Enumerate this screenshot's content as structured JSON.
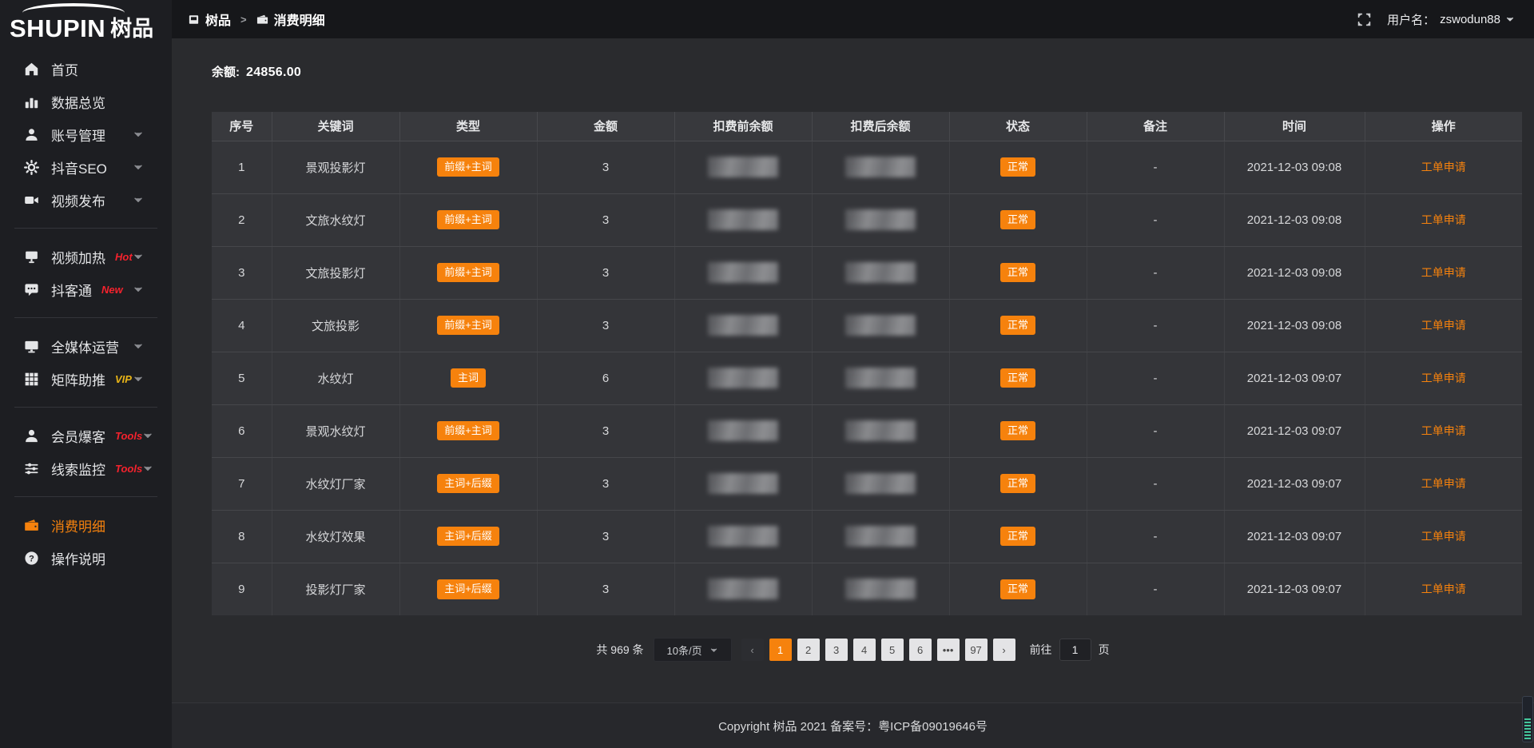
{
  "app": {
    "logo_en": "SHUPIN",
    "logo_cn": "树品"
  },
  "topbar": {
    "breadcrumb": [
      {
        "label": "树品"
      },
      {
        "label": "消费明细"
      }
    ],
    "separator": ">",
    "username_label": "用户名：",
    "username": "zswodun88"
  },
  "balance": {
    "label": "余额:",
    "value": "24856.00"
  },
  "sidebar": {
    "items": [
      {
        "id": "home",
        "label": "首页",
        "icon": "home-icon"
      },
      {
        "id": "data-overview",
        "label": "数据总览",
        "icon": "bar-chart-icon"
      },
      {
        "id": "account-management",
        "label": "账号管理",
        "icon": "user-icon",
        "chevron": true
      },
      {
        "id": "douyin-seo",
        "label": "抖音SEO",
        "icon": "gear-icon",
        "chevron": true
      },
      {
        "id": "video-publish",
        "label": "视频发布",
        "icon": "video-camera-icon",
        "chevron": true
      },
      {
        "type": "divider"
      },
      {
        "id": "video-heating",
        "label": "视频加热",
        "icon": "screen-icon",
        "tag": "Hot",
        "tag_color": "#f5222d",
        "chevron": true
      },
      {
        "id": "douketong",
        "label": "抖客通",
        "icon": "chat-icon",
        "tag": "New",
        "tag_color": "#f5222d",
        "chevron": true
      },
      {
        "type": "divider"
      },
      {
        "id": "all-media-operation",
        "label": "全媒体运营",
        "icon": "monitor-icon",
        "chevron": true
      },
      {
        "id": "matrix-boost",
        "label": "矩阵助推",
        "icon": "grid-icon",
        "tag": "VIP",
        "tag_color": "#e8b417",
        "chevron": true
      },
      {
        "type": "divider"
      },
      {
        "id": "member-baoke",
        "label": "会员爆客",
        "icon": "member-icon",
        "tag": "Tools",
        "tag_color": "#f5222d",
        "chevron": true
      },
      {
        "id": "clue-monitor",
        "label": "线索监控",
        "icon": "sliders-icon",
        "tag": "Tools",
        "tag_color": "#f5222d",
        "chevron": true
      },
      {
        "type": "divider"
      },
      {
        "id": "consumption-details",
        "label": "消费明细",
        "icon": "wallet-icon",
        "active": true
      },
      {
        "id": "operation-guide",
        "label": "操作说明",
        "icon": "question-circle-icon"
      }
    ]
  },
  "table": {
    "columns": [
      "序号",
      "关键词",
      "类型",
      "金额",
      "扣费前余额",
      "扣费后余额",
      "状态",
      "备注",
      "时间",
      "操作"
    ],
    "balance_values_blurred": true,
    "rows": [
      {
        "index": "1",
        "keyword": "景观投影灯",
        "type": "前缀+主词",
        "amount": "3",
        "status": "正常",
        "remark": "-",
        "time": "2021-12-03 09:08",
        "action": "工单申请"
      },
      {
        "index": "2",
        "keyword": "文旅水纹灯",
        "type": "前缀+主词",
        "amount": "3",
        "status": "正常",
        "remark": "-",
        "time": "2021-12-03 09:08",
        "action": "工单申请"
      },
      {
        "index": "3",
        "keyword": "文旅投影灯",
        "type": "前缀+主词",
        "amount": "3",
        "status": "正常",
        "remark": "-",
        "time": "2021-12-03 09:08",
        "action": "工单申请"
      },
      {
        "index": "4",
        "keyword": "文旅投影",
        "type": "前缀+主词",
        "amount": "3",
        "status": "正常",
        "remark": "-",
        "time": "2021-12-03 09:08",
        "action": "工单申请"
      },
      {
        "index": "5",
        "keyword": "水纹灯",
        "type": "主词",
        "amount": "6",
        "status": "正常",
        "remark": "-",
        "time": "2021-12-03 09:07",
        "action": "工单申请"
      },
      {
        "index": "6",
        "keyword": "景观水纹灯",
        "type": "前缀+主词",
        "amount": "3",
        "status": "正常",
        "remark": "-",
        "time": "2021-12-03 09:07",
        "action": "工单申请"
      },
      {
        "index": "7",
        "keyword": "水纹灯厂家",
        "type": "主词+后缀",
        "amount": "3",
        "status": "正常",
        "remark": "-",
        "time": "2021-12-03 09:07",
        "action": "工单申请"
      },
      {
        "index": "8",
        "keyword": "水纹灯效果",
        "type": "主词+后缀",
        "amount": "3",
        "status": "正常",
        "remark": "-",
        "time": "2021-12-03 09:07",
        "action": "工单申请"
      },
      {
        "index": "9",
        "keyword": "投影灯厂家",
        "type": "主词+后缀",
        "amount": "3",
        "status": "正常",
        "remark": "-",
        "time": "2021-12-03 09:07",
        "action": "工单申请"
      }
    ]
  },
  "pagination": {
    "total_label": "共 969 条",
    "per_page": "10条/页",
    "prev_label": "‹",
    "next_label": "›",
    "pages": [
      "1",
      "2",
      "3",
      "4",
      "5",
      "6",
      "•••",
      "97"
    ],
    "active_page": "1",
    "goto_label": "前往",
    "goto_value": "1",
    "page_unit_label": "页"
  },
  "footer": {
    "copyright": "Copyright 树品 2021 备案号：粤ICP备09019646号"
  },
  "colors": {
    "accent": "#f6820d",
    "hot_tag": "#f5222d",
    "vip_tag": "#e8b417"
  }
}
